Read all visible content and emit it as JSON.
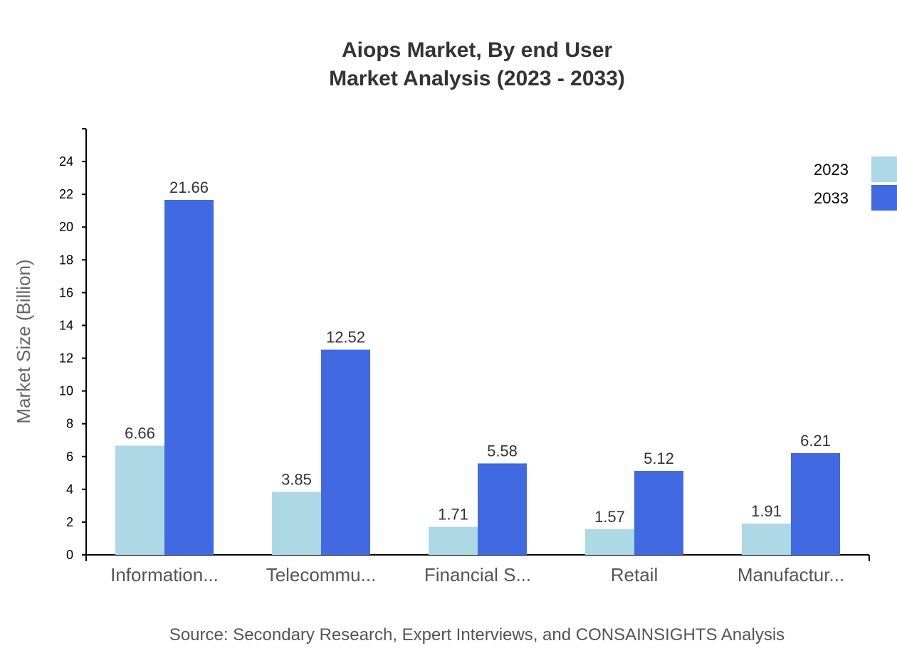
{
  "chart_data": {
    "type": "bar",
    "title": "Aiops Market, By end User",
    "subtitle": "Market Analysis (2023 - 2033)",
    "xlabel": "",
    "ylabel": "Market Size (Billion)",
    "ylim": [
      0,
      26
    ],
    "yticks": [
      0,
      2,
      4,
      6,
      8,
      10,
      12,
      14,
      16,
      18,
      20,
      22,
      24
    ],
    "categories": [
      "Information...",
      "Telecommu...",
      "Financial S...",
      "Retail",
      "Manufactur..."
    ],
    "series": [
      {
        "name": "2023",
        "color": "#add8e6",
        "values": [
          6.66,
          3.85,
          1.71,
          1.57,
          1.91
        ]
      },
      {
        "name": "2033",
        "color": "#4169e1",
        "values": [
          21.66,
          12.52,
          5.58,
          5.12,
          6.21
        ]
      }
    ],
    "grid": false,
    "legend_position": "top-right",
    "source": "Source: Secondary Research, Expert Interviews, and CONSAINSIGHTS Analysis"
  }
}
